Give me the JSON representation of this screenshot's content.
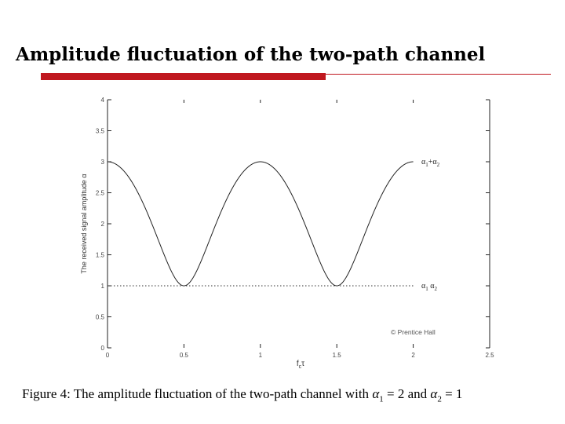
{
  "slide": {
    "title": "Amplitude fluctuation of the two-path channel",
    "accent_color": "#c0181f"
  },
  "caption": {
    "prefix": "Figure 4: The amplitude fluctuation of the two-path channel with",
    "var1": "α",
    "sub1": "1",
    "eq1": "= 2 and",
    "var2": "α",
    "sub2": "2",
    "eq2": "= 1"
  },
  "chart_data": {
    "type": "line",
    "xlabel": "f_cτ",
    "ylabel": "The received signal amplitude α",
    "xlim": [
      0,
      2.5
    ],
    "ylim": [
      0,
      4
    ],
    "xticks": [
      "0",
      "0.5",
      "1",
      "1.5",
      "2",
      "2.5"
    ],
    "yticks": [
      "0",
      "0.5",
      "1",
      "1.5",
      "2",
      "2.5",
      "3",
      "3.5",
      "4"
    ],
    "grid": false,
    "series": [
      {
        "name": "α1+α2 (max) ... α1−α2 (min)",
        "style": "solid",
        "x": [
          0,
          0.125,
          0.25,
          0.375,
          0.5,
          0.625,
          0.75,
          0.875,
          1.0,
          1.125,
          1.25,
          1.375,
          1.5,
          1.625,
          1.75,
          1.875,
          2.0
        ],
        "y": [
          3.0,
          2.8,
          2.24,
          1.47,
          1.0,
          1.47,
          2.24,
          2.8,
          3.0,
          2.8,
          2.24,
          1.47,
          1.0,
          1.47,
          2.24,
          2.8,
          3.0
        ]
      },
      {
        "name": "α1−α2",
        "style": "dotted",
        "x": [
          0,
          2.0
        ],
        "y": [
          1.0,
          1.0
        ]
      }
    ],
    "annotations": [
      {
        "text_var": "α",
        "text_sub1": "1",
        "text_op": "+α",
        "text_sub2": "2",
        "at_y": 3.0
      },
      {
        "text_var": "α",
        "text_sub1": "1",
        "text_op": " α",
        "text_sub2": "2",
        "at_y": 1.0
      }
    ],
    "watermark": "© Prentice Hall"
  }
}
